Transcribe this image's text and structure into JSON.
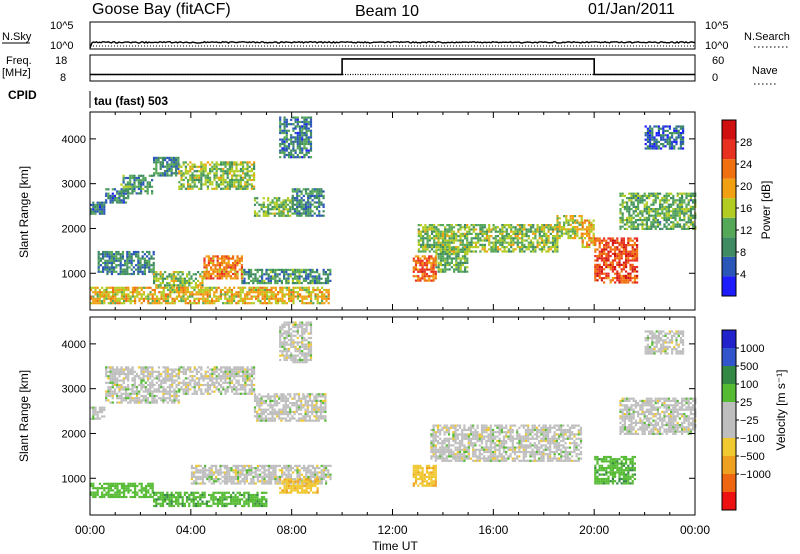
{
  "header": {
    "station": "Goose Bay (fitACF)",
    "beam": "Beam 10",
    "date": "01/Jan/2011"
  },
  "strips": {
    "nsky_label": "N.Sky",
    "nsearch_label": "N.Search",
    "nsky_ticks": [
      "10^5",
      "10^0"
    ],
    "freq_label_1": "Freq.",
    "freq_label_2": "[MHz]",
    "freq_ticks": [
      "18",
      "8"
    ],
    "nave_label": "Nave",
    "nave_ticks": [
      "60",
      "0"
    ],
    "cpid_label": "CPID",
    "cpid_value": "tau (fast) 503"
  },
  "axes": {
    "ylabel": "Slant Range [km]",
    "xlabel": "Time UT",
    "range_ticks": [
      "1000",
      "2000",
      "3000",
      "4000"
    ],
    "time_ticks": [
      "00:00",
      "04:00",
      "08:00",
      "12:00",
      "16:00",
      "20:00",
      "00:00"
    ],
    "power_label": "Power [dB]",
    "power_ticks": [
      "4",
      "8",
      "12",
      "16",
      "20",
      "24",
      "28"
    ],
    "velocity_label": "Velocity [m s⁻¹]",
    "velocity_ticks": [
      "1000",
      "500",
      "100",
      "25",
      "−25",
      "−100",
      "−500",
      "−1000"
    ]
  },
  "colors": {
    "power_scale": [
      "#1c1cff",
      "#2a56b8",
      "#3e8a62",
      "#55a858",
      "#b2cc22",
      "#f0a010",
      "#f07010",
      "#e83020",
      "#d01010"
    ],
    "velocity_scale": [
      "#ee1111",
      "#ee6611",
      "#eea020",
      "#f0c830",
      "#bebebe",
      "#bebebe",
      "#55bb33",
      "#338844",
      "#3355cc",
      "#2222cc"
    ]
  },
  "chart_data": [
    {
      "type": "heatmap",
      "title": "Power",
      "xlabel": "Time UT",
      "ylabel": "Slant Range [km]",
      "xlim": [
        0,
        24
      ],
      "ylim": [
        180,
        4600
      ],
      "color_range": [
        0,
        32
      ],
      "colorbar_label": "Power [dB]",
      "regions": [
        {
          "t_start": 0.0,
          "t_end": 0.6,
          "r_start": 2350,
          "r_end": 2600,
          "value": 8
        },
        {
          "t_start": 0.6,
          "t_end": 1.5,
          "r_start": 2600,
          "r_end": 2900,
          "value": 8
        },
        {
          "t_start": 1.2,
          "t_end": 2.5,
          "r_start": 2800,
          "r_end": 3200,
          "value": 10
        },
        {
          "t_start": 2.5,
          "t_end": 3.5,
          "r_start": 3200,
          "r_end": 3600,
          "value": 9
        },
        {
          "t_start": 3.5,
          "t_end": 6.5,
          "r_start": 2900,
          "r_end": 3500,
          "value": 14
        },
        {
          "t_start": 6.5,
          "t_end": 8.0,
          "r_start": 2300,
          "r_end": 2700,
          "value": 13
        },
        {
          "t_start": 8.0,
          "t_end": 9.3,
          "r_start": 2300,
          "r_end": 2900,
          "value": 9
        },
        {
          "t_start": 7.5,
          "t_end": 8.8,
          "r_start": 3600,
          "r_end": 4500,
          "value": 8
        },
        {
          "t_start": 0.3,
          "t_end": 2.5,
          "r_start": 1000,
          "r_end": 1500,
          "value": 9
        },
        {
          "t_start": 2.5,
          "t_end": 4.5,
          "r_start": 700,
          "r_end": 1050,
          "value": 14
        },
        {
          "t_start": 4.5,
          "t_end": 6.0,
          "r_start": 900,
          "r_end": 1400,
          "value": 22
        },
        {
          "t_start": 6.0,
          "t_end": 9.5,
          "r_start": 800,
          "r_end": 1100,
          "value": 10
        },
        {
          "t_start": 0.0,
          "t_end": 9.5,
          "r_start": 350,
          "r_end": 700,
          "value": 18
        },
        {
          "t_start": 12.8,
          "t_end": 13.7,
          "r_start": 850,
          "r_end": 1400,
          "value": 24
        },
        {
          "t_start": 13.7,
          "t_end": 15.0,
          "r_start": 1050,
          "r_end": 1600,
          "value": 12
        },
        {
          "t_start": 13.0,
          "t_end": 18.5,
          "r_start": 1500,
          "r_end": 2100,
          "value": 14
        },
        {
          "t_start": 18.5,
          "t_end": 19.5,
          "r_start": 1800,
          "r_end": 2300,
          "value": 16
        },
        {
          "t_start": 19.5,
          "t_end": 20.0,
          "r_start": 1600,
          "r_end": 2200,
          "value": 20
        },
        {
          "t_start": 20.0,
          "t_end": 21.7,
          "r_start": 800,
          "r_end": 1800,
          "value": 26
        },
        {
          "t_start": 21.0,
          "t_end": 24.0,
          "r_start": 2000,
          "r_end": 2800,
          "value": 12
        },
        {
          "t_start": 22.0,
          "t_end": 23.5,
          "r_start": 3800,
          "r_end": 4300,
          "value": 6
        }
      ]
    },
    {
      "type": "heatmap",
      "title": "Velocity",
      "xlabel": "Time UT",
      "ylabel": "Slant Range [km]",
      "xlim": [
        0,
        24
      ],
      "ylim": [
        180,
        4600
      ],
      "color_range": [
        -1000,
        1000
      ],
      "colorbar_label": "Velocity [m s⁻¹]",
      "regions": [
        {
          "t_start": 0.0,
          "t_end": 0.6,
          "r_start": 2350,
          "r_end": 2600,
          "value": 0
        },
        {
          "t_start": 0.6,
          "t_end": 3.5,
          "r_start": 2700,
          "r_end": 3500,
          "value": 0
        },
        {
          "t_start": 3.5,
          "t_end": 6.5,
          "r_start": 2900,
          "r_end": 3500,
          "value": 0
        },
        {
          "t_start": 6.5,
          "t_end": 9.3,
          "r_start": 2300,
          "r_end": 2900,
          "value": 0
        },
        {
          "t_start": 7.5,
          "t_end": 8.8,
          "r_start": 3600,
          "r_end": 4500,
          "value": 0
        },
        {
          "t_start": 0.0,
          "t_end": 2.5,
          "r_start": 600,
          "r_end": 900,
          "value": 60
        },
        {
          "t_start": 2.5,
          "t_end": 7.0,
          "r_start": 400,
          "r_end": 700,
          "value": 80
        },
        {
          "t_start": 4.0,
          "t_end": 9.5,
          "r_start": 900,
          "r_end": 1300,
          "value": 0
        },
        {
          "t_start": 7.5,
          "t_end": 9.0,
          "r_start": 700,
          "r_end": 1000,
          "value": -80
        },
        {
          "t_start": 12.8,
          "t_end": 13.7,
          "r_start": 850,
          "r_end": 1300,
          "value": -80
        },
        {
          "t_start": 13.5,
          "t_end": 19.5,
          "r_start": 1400,
          "r_end": 2200,
          "value": 0
        },
        {
          "t_start": 20.0,
          "t_end": 21.6,
          "r_start": 900,
          "r_end": 1500,
          "value": 80
        },
        {
          "t_start": 21.0,
          "t_end": 24.0,
          "r_start": 2000,
          "r_end": 2800,
          "value": 0
        },
        {
          "t_start": 22.0,
          "t_end": 23.5,
          "r_start": 3800,
          "r_end": 4300,
          "value": 0
        }
      ]
    },
    {
      "type": "line",
      "title": "N.Sky",
      "x_range": [
        0,
        24
      ],
      "y_scale": "log",
      "ylim": [
        1,
        100000
      ],
      "series": [
        {
          "name": "N.Sky",
          "x": [
            0,
            0.1,
            24
          ],
          "y": [
            1,
            10,
            10
          ]
        }
      ]
    },
    {
      "type": "line",
      "title": "Freq. [MHz]",
      "ylim": [
        8,
        18
      ],
      "series": [
        {
          "name": "Freq. [MHz]",
          "x": [
            0,
            10.0,
            10.0,
            20.0,
            20.0,
            24
          ],
          "y": [
            10.5,
            10.5,
            16.5,
            16.5,
            10.5,
            10.5
          ]
        }
      ]
    },
    {
      "type": "line",
      "title": "Nave",
      "ylim": [
        0,
        60
      ],
      "series": [
        {
          "name": "Nave",
          "x": [
            0,
            24
          ],
          "y": [
            15,
            15
          ]
        }
      ]
    }
  ]
}
